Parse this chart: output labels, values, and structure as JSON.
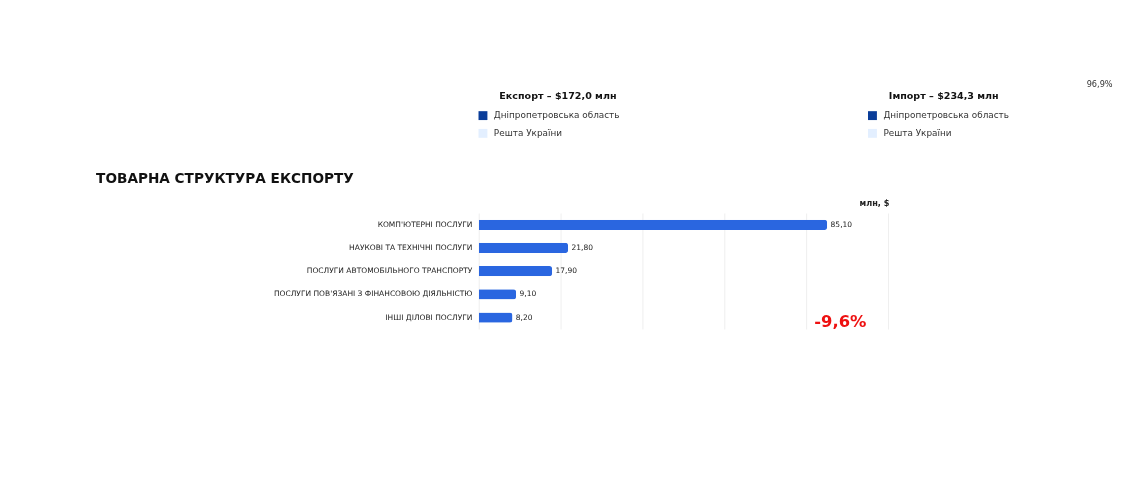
{
  "chart_data": [
    {
      "type": "other",
      "title": "Експорт – $172,0 млн",
      "series": [
        {
          "name": "Дніпропетровська область",
          "color": "#0a3d99"
        },
        {
          "name": "Решта України",
          "color": "#e3efff"
        }
      ]
    },
    {
      "type": "other",
      "title": "Імпорт – $234,3 млн",
      "annotations": [
        "96,9%"
      ],
      "series": [
        {
          "name": "Дніпропетровська область",
          "color": "#0a3d99"
        },
        {
          "name": "Решта України",
          "color": "#e3efff"
        }
      ]
    },
    {
      "type": "bar",
      "orientation": "horizontal",
      "title": "ТОВАРНА СТРУКТУРА ЕКСПОРТУ",
      "categories": [
        "КОМП'ЮТЕРНІ ПОСЛУГИ",
        "НАУКОВІ ТА ТЕХНІЧНІ ПОСЛУГИ",
        "ПОСЛУГИ АВТОМОБІЛЬНОГО ТРАНСПОРТУ",
        "ПОСЛУГИ ПОВ'ЯЗАНІ З ФІНАНСОВОЮ ДІЯЛЬНІСТЮ",
        "ІНШІ ДІЛОВІ ПОСЛУГИ"
      ],
      "values": [
        85.1,
        21.8,
        17.9,
        9.1,
        8.2
      ],
      "value_labels": [
        "85,10",
        "21,80",
        "17,90",
        "9,10",
        "8,20"
      ],
      "color": "#2a66e0",
      "xlim": [
        0,
        100
      ],
      "xticks": [
        {
          "value": 0,
          "label": null
        },
        {
          "value": 20,
          "label": null
        },
        {
          "value": 40,
          "label": null
        },
        {
          "value": 60,
          "label": null
        },
        {
          "value": 80,
          "label": null
        },
        {
          "value": 100,
          "label": null
        }
      ],
      "tick_labels": "y",
      "grid": "x",
      "annotations": [
        "млн, $",
        "-9,6%"
      ]
    }
  ]
}
